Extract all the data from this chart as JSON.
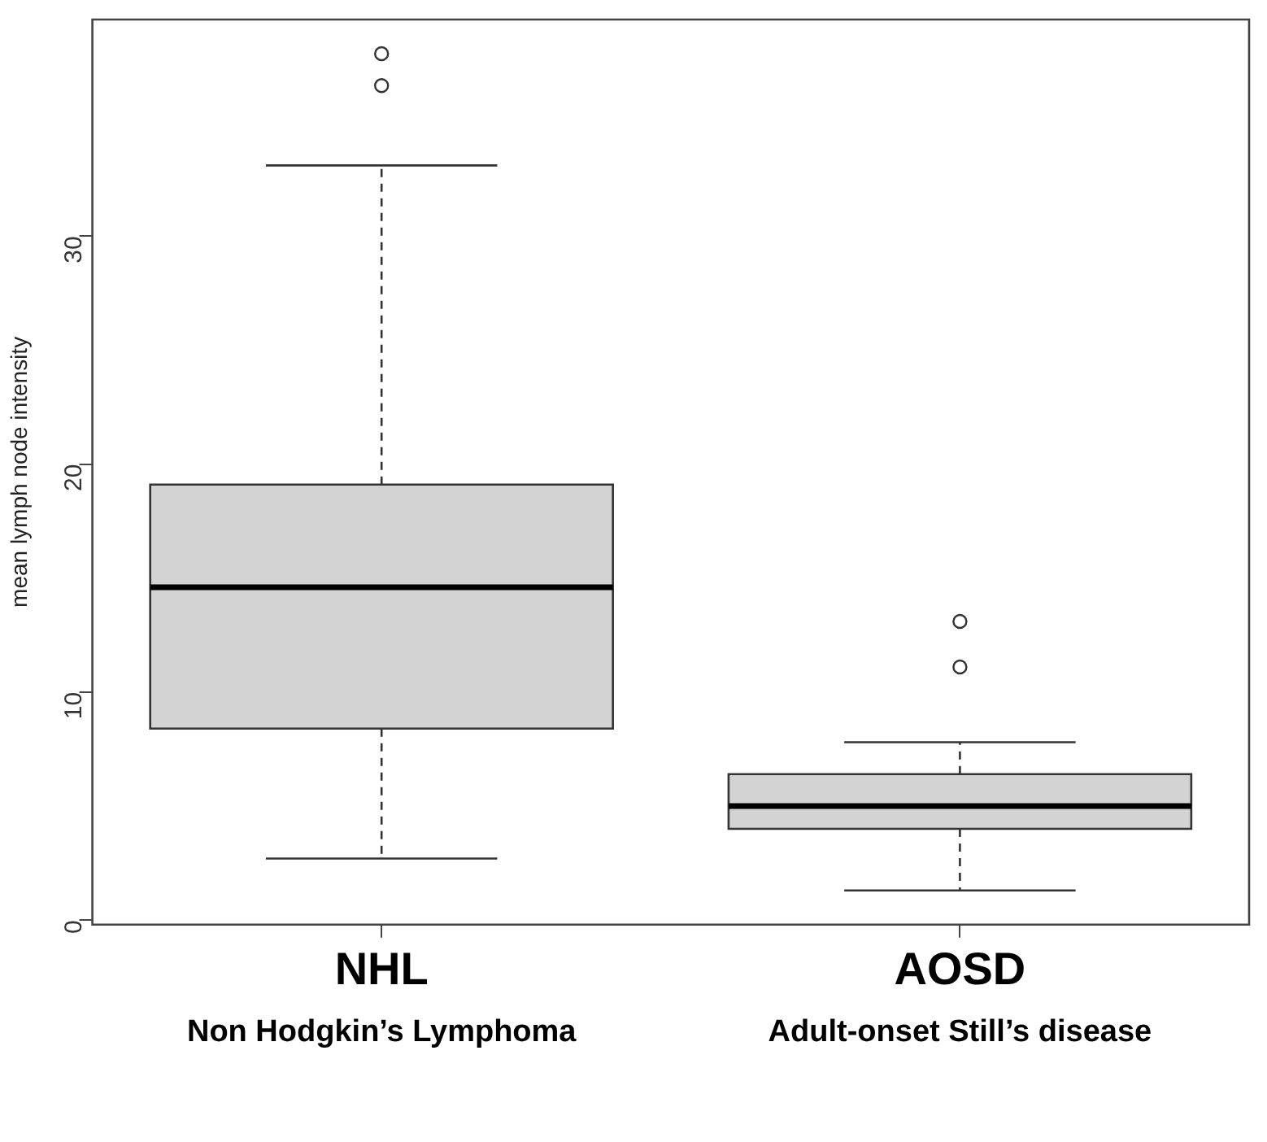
{
  "chart_data": {
    "type": "box",
    "ylabel": "mean lymph node intensity",
    "categories": [
      "NHL",
      "AOSD"
    ],
    "boxes": [
      {
        "low": 2.7,
        "q1": 8.4,
        "median": 14.6,
        "q3": 19.1,
        "high": 33.1,
        "outliers": [
          36.6,
          38.0
        ]
      },
      {
        "low": 1.3,
        "q1": 4.0,
        "median": 5.0,
        "q3": 6.4,
        "high": 7.8,
        "outliers": [
          11.1,
          13.1
        ]
      }
    ],
    "color": "#d3d3d3",
    "ylim": [
      -0.2,
      39.5
    ],
    "yticks": [
      0,
      10,
      20,
      30
    ],
    "annotations": [
      "Non Hodgkin’s Lymphoma",
      "Adult-onset Still’s disease"
    ]
  }
}
